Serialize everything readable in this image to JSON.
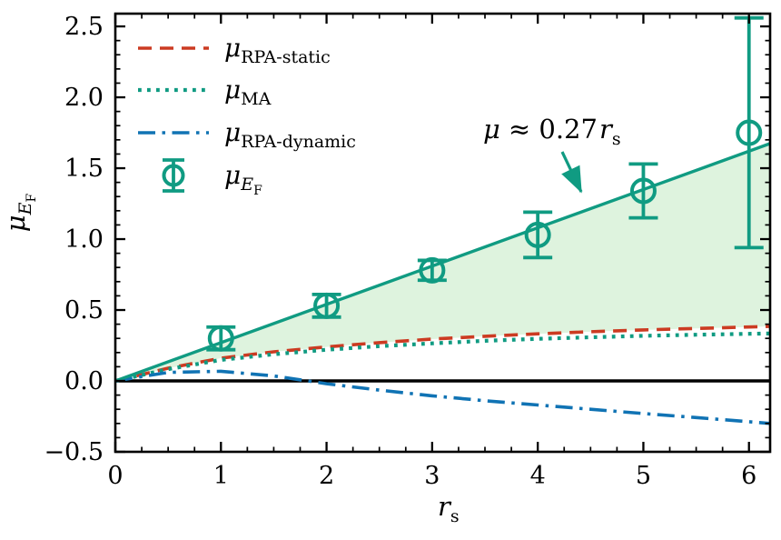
{
  "chart_data": {
    "type": "line",
    "title": "",
    "xlabel": "r_s",
    "ylabel": "mu_E_F",
    "xlim": [
      0,
      6.2
    ],
    "ylim": [
      -0.5,
      2.59
    ],
    "grid": false,
    "legend_position": "upper-left",
    "x_ticks": {
      "values": [
        0,
        1,
        2,
        3,
        4,
        5,
        6
      ],
      "labels": [
        "0",
        "1",
        "2",
        "3",
        "4",
        "5",
        "6"
      ],
      "minor_step": 0.25
    },
    "y_ticks": {
      "values": [
        -0.5,
        0,
        0.5,
        1,
        1.5,
        2,
        2.5
      ],
      "labels": [
        "−0.5",
        "0.0",
        "0.5",
        "1.0",
        "1.5",
        "2.0",
        "2.5"
      ],
      "minor_step": 0.1
    },
    "x": [
      0,
      0.5,
      1,
      1.5,
      2,
      2.5,
      3,
      3.5,
      4,
      4.5,
      5,
      5.5,
      6,
      6.2
    ],
    "series": [
      {
        "name": "mu_RPA-static",
        "style": "dashed",
        "color": "#cc3b22",
        "values": [
          0,
          0.09,
          0.16,
          0.205,
          0.24,
          0.27,
          0.295,
          0.315,
          0.332,
          0.347,
          0.36,
          0.37,
          0.38,
          0.385
        ]
      },
      {
        "name": "mu_MA",
        "style": "dotted",
        "color": "#109b82",
        "values": [
          0,
          0.083,
          0.148,
          0.188,
          0.22,
          0.245,
          0.265,
          0.283,
          0.297,
          0.308,
          0.318,
          0.326,
          0.332,
          0.335
        ]
      },
      {
        "name": "mu_RPA-dynamic",
        "style": "dashdot",
        "color": "#1073b4",
        "values": [
          0,
          0.06,
          0.068,
          0.035,
          -0.02,
          -0.065,
          -0.105,
          -0.14,
          -0.17,
          -0.2,
          -0.23,
          -0.258,
          -0.288,
          -0.3
        ]
      }
    ],
    "fit_line": {
      "label": "μ ≈ 0.27r_s",
      "slope": 0.27,
      "color": "#109b82",
      "x_range": [
        0,
        6.2
      ]
    },
    "fill_between": {
      "upper": "fit_line",
      "lower": "mu_RPA-static",
      "color": "#def3de"
    },
    "points": {
      "name": "mu_E_F",
      "color": "#109b82",
      "x": [
        1,
        2,
        3,
        4,
        5,
        6
      ],
      "y": [
        0.3,
        0.53,
        0.78,
        1.03,
        1.34,
        1.75
      ],
      "yerr": [
        0.08,
        0.08,
        0.07,
        0.16,
        0.19,
        0.81
      ]
    },
    "zero_line": {
      "y": 0,
      "color": "#000000"
    }
  },
  "legend": {
    "entries": [
      {
        "label_main": "μ",
        "label_sub": "RPA-static",
        "style": "dashed"
      },
      {
        "label_main": "μ",
        "label_sub": "MA",
        "style": "dotted"
      },
      {
        "label_main": "μ",
        "label_sub": "RPA-dynamic",
        "style": "dashdot"
      },
      {
        "label_main": "μ",
        "label_sub": "E",
        "label_subsub": "F",
        "style": "errorbar-marker"
      }
    ]
  },
  "annotation": {
    "part_mu": "μ",
    "part_mid": "≈ 0.27",
    "part_r": "r",
    "part_sub": "s"
  },
  "axis_labels": {
    "x_main": "r",
    "x_sub": "s",
    "y_main": "μ",
    "y_sub": "E",
    "y_subsub": "F"
  },
  "colors": {
    "teal": "#109b82",
    "red": "#cc3b22",
    "blue": "#1073b4",
    "fill": "#def3de",
    "black": "#000000"
  }
}
